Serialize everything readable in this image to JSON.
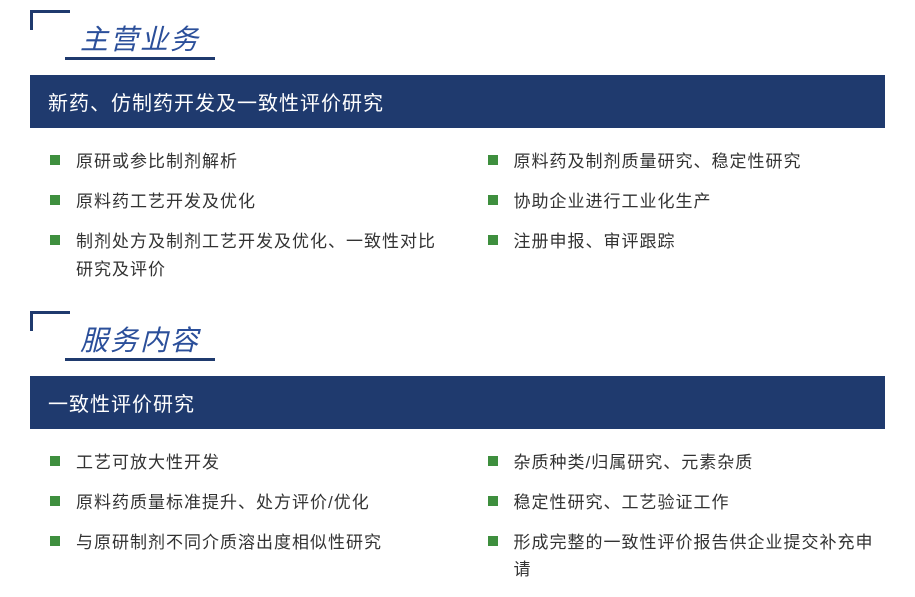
{
  "colors": {
    "primary_dark": "#1f3a6e",
    "label_blue": "#2b4f9a",
    "bullet_green": "#3e8f3e",
    "text": "#333333",
    "background": "#ffffff"
  },
  "typography": {
    "label_fontsize": 28,
    "bar_fontsize": 20,
    "item_fontsize": 17
  },
  "sections": [
    {
      "label": "主营业务",
      "bar_title": "新药、仿制药开发及一致性评价研究",
      "left_items": [
        "原研或参比制剂解析",
        "原料药工艺开发及优化",
        "制剂处方及制剂工艺开发及优化、一致性对比研究及评价"
      ],
      "right_items": [
        "原料药及制剂质量研究、稳定性研究",
        "协助企业进行工业化生产",
        "注册申报、审评跟踪"
      ]
    },
    {
      "label": "服务内容",
      "bar_title": "一致性评价研究",
      "left_items": [
        "工艺可放大性开发",
        "原料药质量标准提升、处方评价/优化",
        "与原研制剂不同介质溶出度相似性研究"
      ],
      "right_items": [
        "杂质种类/归属研究、元素杂质",
        "稳定性研究、工艺验证工作",
        "形成完整的一致性评价报告供企业提交补充申请"
      ]
    }
  ]
}
